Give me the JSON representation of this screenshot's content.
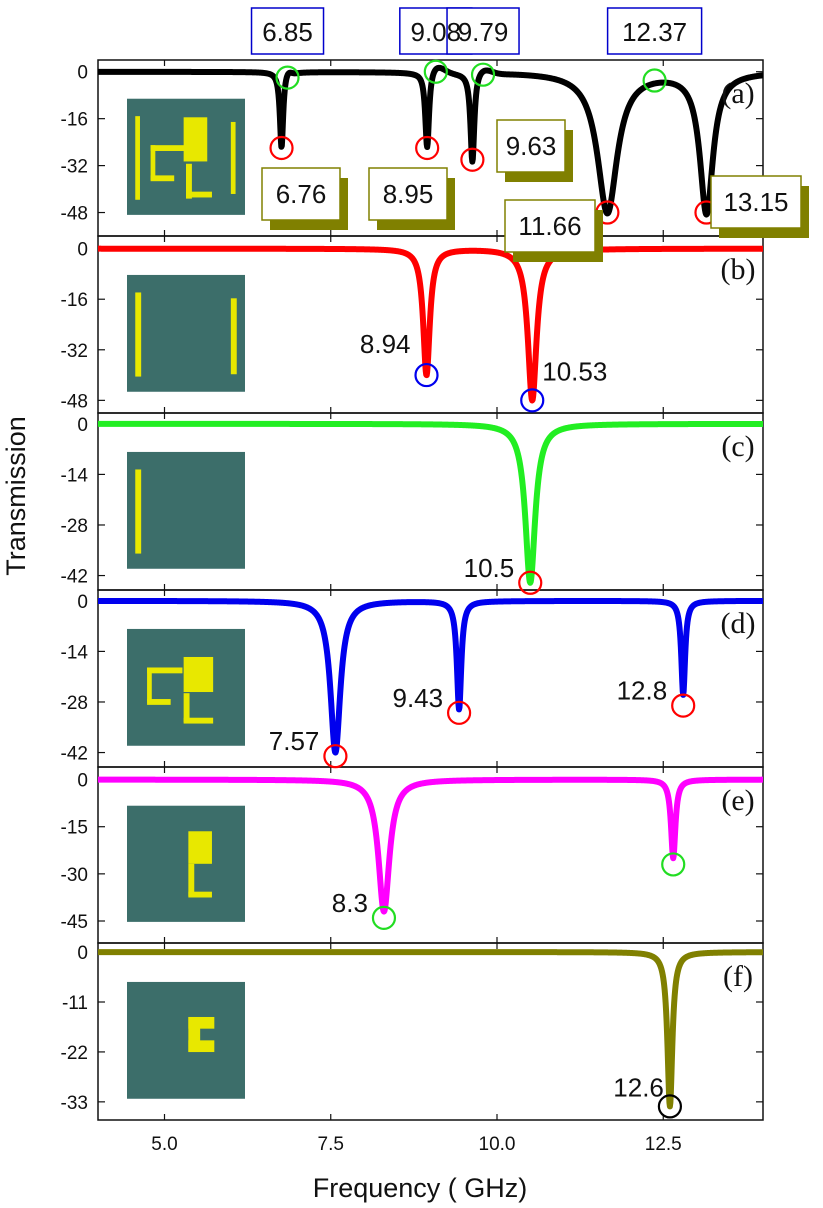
{
  "colors": {
    "a": "#000000",
    "b": "#ff0000",
    "c": "#22ee22",
    "d": "#0000ee",
    "e": "#ff00ff",
    "f": "#808000",
    "inset_bg": "#3c6e6a",
    "inset_metal": "#e8e800",
    "red_marker": "#ff0000",
    "green_marker": "#22dd22",
    "blue_marker": "#0000ee",
    "black_marker": "#000000",
    "blue_box": "#0000cc",
    "olive_box": "#808000"
  },
  "chart_data": {
    "type": "line",
    "xlabel": "Frequency (  GHz)",
    "ylabel": "Transmission",
    "xlim": [
      4.0,
      14.0
    ],
    "x_ticks": [
      "5.0",
      "7.5",
      "10.0",
      "12.5"
    ],
    "x_tick_values": [
      5.0,
      7.5,
      10.0,
      12.5
    ],
    "panels": [
      {
        "id": "a",
        "tag": "(a)",
        "ylim": [
          -56,
          4
        ],
        "y_ticks": [
          0,
          -16,
          -32,
          -48
        ],
        "y_tick_labels": [
          "0",
          "-16",
          "-32",
          "-48"
        ],
        "inset": "full",
        "dips": [
          {
            "x": 6.76,
            "depth": 26,
            "w": 0.03
          },
          {
            "x": 8.95,
            "depth": 27,
            "w": 0.035
          },
          {
            "x": 9.63,
            "depth": 31,
            "w": 0.035
          },
          {
            "x": 11.66,
            "depth": 48,
            "w": 0.18
          },
          {
            "x": 13.15,
            "depth": 48,
            "w": 0.12
          }
        ],
        "peaks": [
          {
            "x": 6.85,
            "height": 1.5,
            "w": 0.05
          },
          {
            "x": 9.08,
            "height": 3,
            "w": 0.12
          },
          {
            "x": 9.79,
            "height": 2,
            "w": 0.12
          },
          {
            "x": 12.37,
            "height": 0,
            "w": 0.1
          }
        ],
        "min_markers": [
          {
            "x": 6.76,
            "y": -26,
            "label": "6.76"
          },
          {
            "x": 8.95,
            "y": -26,
            "label": "8.95"
          },
          {
            "x": 9.63,
            "y": -30,
            "label": "9.63"
          },
          {
            "x": 11.66,
            "y": -48,
            "label": "11.66"
          },
          {
            "x": 13.15,
            "y": -48,
            "label": "13.15"
          }
        ],
        "max_markers": [
          {
            "x": 6.85,
            "y": -2,
            "label": "6.85"
          },
          {
            "x": 9.08,
            "y": 0,
            "label": "9.08"
          },
          {
            "x": 9.79,
            "y": -1,
            "label": "9.79"
          },
          {
            "x": 12.37,
            "y": -3,
            "label": "12.37"
          }
        ]
      },
      {
        "id": "b",
        "tag": "(b)",
        "ylim": [
          -52,
          4
        ],
        "y_ticks": [
          0,
          -16,
          -32,
          -48
        ],
        "y_tick_labels": [
          "0",
          "-16",
          "-32",
          "-48"
        ],
        "inset": "two-bars",
        "dips": [
          {
            "x": 8.94,
            "depth": 40,
            "w": 0.06
          },
          {
            "x": 10.53,
            "depth": 48,
            "w": 0.08
          }
        ],
        "peaks": [],
        "min_markers": [
          {
            "x": 8.94,
            "y": -40,
            "label": "8.94"
          },
          {
            "x": 10.53,
            "y": -48,
            "label": "10.53"
          }
        ],
        "max_markers": []
      },
      {
        "id": "c",
        "tag": "(c)",
        "ylim": [
          -46,
          3
        ],
        "y_ticks": [
          0,
          -14,
          -28,
          -42
        ],
        "y_tick_labels": [
          "0",
          "-14",
          "-28",
          "-42"
        ],
        "inset": "one-bar",
        "dips": [
          {
            "x": 10.5,
            "depth": 44,
            "w": 0.09
          }
        ],
        "peaks": [],
        "min_markers": [
          {
            "x": 10.5,
            "y": -44,
            "label": "10.5"
          }
        ],
        "max_markers": []
      },
      {
        "id": "d",
        "tag": "(d)",
        "ylim": [
          -46,
          3
        ],
        "y_ticks": [
          0,
          -14,
          -28,
          -42
        ],
        "y_tick_labels": [
          "0",
          "-14",
          "-28",
          "-42"
        ],
        "inset": "resonator",
        "dips": [
          {
            "x": 7.57,
            "depth": 42,
            "w": 0.09
          },
          {
            "x": 9.43,
            "depth": 30,
            "w": 0.04
          },
          {
            "x": 12.8,
            "depth": 26,
            "w": 0.035
          }
        ],
        "peaks": [],
        "min_markers": [
          {
            "x": 7.57,
            "y": -43,
            "label": "7.57"
          },
          {
            "x": 9.43,
            "y": -31,
            "label": "9.43"
          },
          {
            "x": 12.8,
            "y": -29,
            "label": "12.8"
          }
        ],
        "max_markers": []
      },
      {
        "id": "e",
        "tag": "(e)",
        "ylim": [
          -52,
          4
        ],
        "y_ticks": [
          0,
          -15,
          -30,
          -45
        ],
        "y_tick_labels": [
          "0",
          "-15",
          "-30",
          "-45"
        ],
        "inset": "e-shape",
        "dips": [
          {
            "x": 8.3,
            "depth": 42,
            "w": 0.1
          },
          {
            "x": 12.65,
            "depth": 25,
            "w": 0.04
          }
        ],
        "peaks": [],
        "min_markers": [
          {
            "x": 8.3,
            "y": -44,
            "label": "8.3"
          },
          {
            "x": 12.65,
            "y": -27,
            "label": ""
          }
        ],
        "max_markers": []
      },
      {
        "id": "f",
        "tag": "(f)",
        "ylim": [
          -37,
          2
        ],
        "y_ticks": [
          0,
          -11,
          -22,
          -33
        ],
        "y_tick_labels": [
          "0",
          "-11",
          "-22",
          "-33"
        ],
        "inset": "c-shape",
        "dips": [
          {
            "x": 12.6,
            "depth": 34,
            "w": 0.045
          }
        ],
        "peaks": [],
        "min_markers": [
          {
            "x": 12.6,
            "y": -34,
            "label": "12.6"
          }
        ],
        "max_markers": []
      }
    ]
  }
}
